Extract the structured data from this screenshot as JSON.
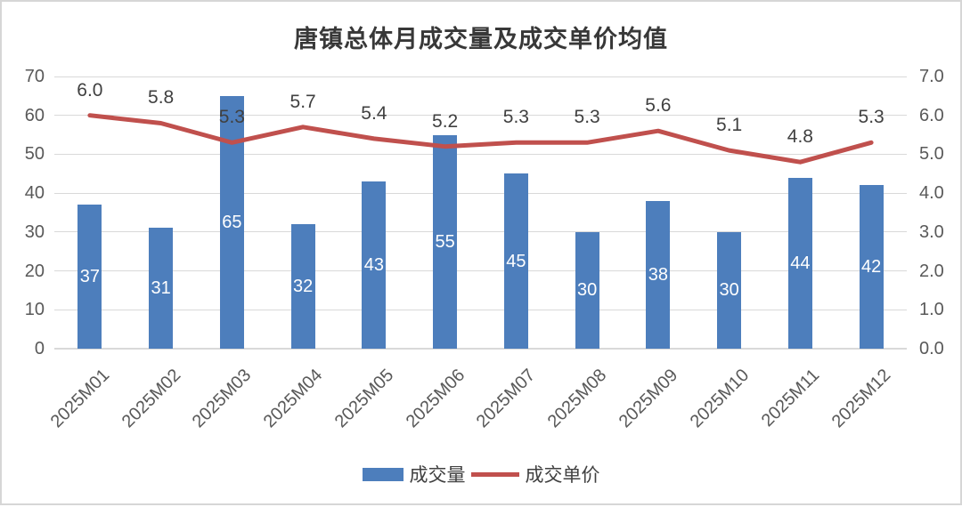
{
  "window": {
    "background": "#ffffff",
    "border_color": "#d6d6d6"
  },
  "chart_data": {
    "type": "combo-bar-line",
    "title": "唐镇总体月成交量及成交单价均值",
    "categories": [
      "2025M01",
      "2025M02",
      "2025M03",
      "2025M04",
      "2025M05",
      "2025M06",
      "2025M07",
      "2025M08",
      "2025M09",
      "2025M10",
      "2025M11",
      "2025M12"
    ],
    "series": [
      {
        "name": "成交量",
        "type": "bar",
        "axis": "left",
        "color": "#4D7EBC",
        "values": [
          37,
          31,
          65,
          32,
          43,
          55,
          45,
          30,
          38,
          30,
          44,
          42
        ],
        "labels": [
          "37",
          "31",
          "65",
          "32",
          "43",
          "55",
          "45",
          "30",
          "38",
          "30",
          "44",
          "42"
        ],
        "label_color": "#ffffff",
        "label_position": "inside-center"
      },
      {
        "name": "成交单价",
        "type": "line",
        "axis": "right",
        "color": "#C0504D",
        "values": [
          6.0,
          5.8,
          5.3,
          5.7,
          5.4,
          5.2,
          5.3,
          5.3,
          5.6,
          5.1,
          4.8,
          5.3
        ],
        "labels": [
          "6.0",
          "5.8",
          "5.3",
          "5.7",
          "5.4",
          "5.2",
          "5.3",
          "5.3",
          "5.6",
          "5.1",
          "4.8",
          "5.3"
        ],
        "label_color": "#404040",
        "label_position": "above"
      }
    ],
    "left_axis": {
      "min": 0,
      "max": 70,
      "tick_labels": [
        "0",
        "10",
        "20",
        "30",
        "40",
        "50",
        "60",
        "70"
      ]
    },
    "right_axis": {
      "min": 0.0,
      "max": 7.0,
      "tick_labels": [
        "0.0",
        "1.0",
        "2.0",
        "3.0",
        "4.0",
        "5.0",
        "6.0",
        "7.0"
      ]
    },
    "grid": "horizontal",
    "grid_color": "#d9d9d9",
    "legend_position": "bottom",
    "text_colors": {
      "axis": "#595959",
      "data_label": "#404040",
      "title": "#383838"
    }
  }
}
